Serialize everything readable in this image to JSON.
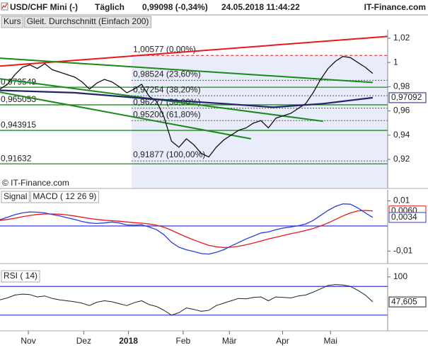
{
  "header": {
    "symbol": "USD/CHF Mini (-)",
    "interval": "Täglich",
    "quote": "0,99098 (-0,34%)",
    "timestamp": "24.05.2018 11:44:22",
    "brand": "IT-Finance.com"
  },
  "chart_data": [
    {
      "type": "line",
      "source": "© IT-Finance.com",
      "xlim": [
        0,
        156
      ],
      "ylim": [
        0.896,
        1.027
      ],
      "yticks": [
        {
          "value": 0.92,
          "label": "0,92"
        },
        {
          "value": 0.94,
          "label": "0,94"
        },
        {
          "value": 0.96,
          "label": "0,96"
        },
        {
          "value": 0.98,
          "label": "0,98"
        },
        1,
        {
          "value": 1.02,
          "label": "1,02"
        }
      ],
      "fib_start_x": 53,
      "fib_color": "#555555",
      "fibs": [
        {
          "value": 1.00577,
          "label": "1,00577 (0,00%)",
          "color": "#e8171b"
        },
        {
          "value": 0.98524,
          "label": "0,98524 (23,60%)"
        },
        {
          "value": 0.97254,
          "label": "0,97254 (38,20%)"
        },
        {
          "value": 0.96227,
          "label": "0,96227 (50,00%)"
        },
        {
          "value": 0.952,
          "label": "0,95200 (61,80%)"
        },
        {
          "value": 0.91877,
          "label": "0,91877 (100,00%)"
        }
      ],
      "level_color": "#1a8a1a",
      "levels": [
        {
          "value": 0.979549,
          "label": "0,979549"
        },
        {
          "value": 0.965053,
          "label": "0,965053"
        },
        {
          "value": 0.943915,
          "label": "0,943915"
        },
        {
          "value": 0.91632,
          "label": "0,91632"
        }
      ],
      "trendlines": [
        {
          "color": "#e8171b",
          "x": [
            0,
            156
          ],
          "values": [
            0.997,
            1.0215
          ]
        },
        {
          "color": "#1a8a1a",
          "x": [
            0,
            150
          ],
          "values": [
            1.0035,
            0.9835
          ]
        },
        {
          "color": "#1a8a1a",
          "x": [
            0,
            130
          ],
          "values": [
            0.9865,
            0.9515
          ]
        },
        {
          "color": "#1a8a1a",
          "x": [
            0,
            101
          ],
          "values": [
            0.9755,
            0.937
          ]
        }
      ],
      "series": [
        {
          "name": "Kurs",
          "color": "#111111",
          "line_width": 1.3,
          "x": [
            0,
            3,
            6,
            9,
            12,
            15,
            18,
            21,
            24,
            27,
            30,
            33,
            36,
            39,
            42,
            45,
            48,
            51,
            54,
            57,
            60,
            63,
            66,
            69,
            72,
            75,
            78,
            81,
            84,
            87,
            90,
            93,
            96,
            99,
            102,
            105,
            108,
            111,
            114,
            117,
            120,
            123,
            126,
            129,
            132,
            135,
            138,
            141,
            144,
            147,
            150
          ],
          "values": [
            0.978,
            0.982,
            0.99,
            0.996,
            0.998,
            0.995,
            0.999,
            0.994,
            0.992,
            0.99,
            0.988,
            0.984,
            0.978,
            0.983,
            0.986,
            0.984,
            0.98,
            0.975,
            0.978,
            0.982,
            0.972,
            0.968,
            0.955,
            0.935,
            0.93,
            0.937,
            0.932,
            0.925,
            0.922,
            0.93,
            0.936,
            0.94,
            0.944,
            0.946,
            0.95,
            0.952,
            0.946,
            0.954,
            0.956,
            0.958,
            0.962,
            0.966,
            0.975,
            0.986,
            0.995,
            1.001,
            1.005,
            1.004,
            1.0,
            0.996,
            0.99098
          ]
        },
        {
          "name": "Gleit. Durchschnitt (Einfach 200)",
          "color": "#23236e",
          "line_width": 2.2,
          "x": [
            0,
            30,
            60,
            90,
            110,
            130,
            150
          ],
          "values": [
            0.977,
            0.975,
            0.97,
            0.966,
            0.963,
            0.966,
            0.97092
          ],
          "last": {
            "value": 0.97092,
            "label": "0,97092"
          }
        }
      ]
    },
    {
      "type": "line",
      "xlim": [
        0,
        156
      ],
      "ylim": [
        -0.015,
        0.0144
      ],
      "yticks": [
        {
          "value": 0.01,
          "label": "0,01"
        },
        {
          "value": -0.01,
          "label": "-0,01"
        }
      ],
      "levels": [
        0
      ],
      "level_color": "#4a4adf",
      "series": [
        {
          "name": "Signal",
          "color": "#e8171b",
          "line_width": 1.3,
          "x": [
            0,
            3,
            6,
            9,
            12,
            15,
            18,
            21,
            24,
            27,
            30,
            33,
            36,
            39,
            42,
            45,
            48,
            51,
            54,
            57,
            60,
            63,
            66,
            69,
            72,
            75,
            78,
            81,
            84,
            87,
            90,
            93,
            96,
            99,
            102,
            105,
            108,
            111,
            114,
            117,
            120,
            123,
            126,
            129,
            132,
            135,
            138,
            141,
            144,
            147,
            150
          ],
          "values": [
            0.0022,
            0.0026,
            0.0031,
            0.0037,
            0.0042,
            0.0046,
            0.0048,
            0.0048,
            0.0047,
            0.0044,
            0.004,
            0.0035,
            0.003,
            0.0026,
            0.0023,
            0.0021,
            0.0019,
            0.0016,
            0.0013,
            0.0011,
            0.0008,
            0.0003,
            -0.0005,
            -0.0017,
            -0.0031,
            -0.0044,
            -0.0056,
            -0.0067,
            -0.0077,
            -0.0083,
            -0.0086,
            -0.0085,
            -0.0081,
            -0.0075,
            -0.0068,
            -0.006,
            -0.0052,
            -0.0045,
            -0.0038,
            -0.0031,
            -0.0025,
            -0.0018,
            -0.001,
            0.0,
            0.0012,
            0.0026,
            0.004,
            0.0052,
            0.006,
            0.0062,
            0.006
          ],
          "last": {
            "value": 0.006,
            "label": "0,0060"
          }
        },
        {
          "name": "MACD ( 12 26 9)",
          "color": "#2a3dd8",
          "line_width": 1.3,
          "x": [
            0,
            3,
            6,
            9,
            12,
            15,
            18,
            21,
            24,
            27,
            30,
            33,
            36,
            39,
            42,
            45,
            48,
            51,
            54,
            57,
            60,
            63,
            66,
            69,
            72,
            75,
            78,
            81,
            84,
            87,
            90,
            93,
            96,
            99,
            102,
            105,
            108,
            111,
            114,
            117,
            120,
            123,
            126,
            129,
            132,
            135,
            138,
            141,
            144,
            147,
            150
          ],
          "values": [
            0.0025,
            0.0035,
            0.0045,
            0.0052,
            0.0056,
            0.0055,
            0.0052,
            0.0046,
            0.004,
            0.0033,
            0.0026,
            0.0018,
            0.0012,
            0.001,
            0.0012,
            0.0016,
            0.0012,
            0.0004,
            0.0003,
            0.0005,
            -0.0004,
            -0.0015,
            -0.0035,
            -0.0065,
            -0.0085,
            -0.0095,
            -0.0102,
            -0.011,
            -0.0112,
            -0.0105,
            -0.0095,
            -0.008,
            -0.0066,
            -0.0052,
            -0.004,
            -0.0028,
            -0.0024,
            -0.0015,
            -0.0008,
            -0.0004,
            0.0001,
            0.0008,
            0.0022,
            0.0042,
            0.0062,
            0.0078,
            0.0088,
            0.0087,
            0.0072,
            0.0052,
            0.0034
          ],
          "last": {
            "value": 0.0034,
            "label": "0,0034"
          }
        }
      ]
    },
    {
      "type": "line",
      "xlim": [
        0,
        156
      ],
      "ylim": [
        -13,
        119
      ],
      "yticks": [
        100
      ],
      "levels": [
        80,
        20
      ],
      "level_color": "#4a4adf",
      "xticks": [
        {
          "value": 11.4,
          "label": "Nov"
        },
        {
          "value": 33.7,
          "label": "Dez"
        },
        {
          "value": 51.7,
          "label": "2018"
        },
        {
          "value": 73.7,
          "label": "Feb"
        },
        {
          "value": 92.3,
          "label": "Mär"
        },
        {
          "value": 113.7,
          "label": "Apr"
        },
        {
          "value": 133,
          "label": "Mai"
        }
      ],
      "series": [
        {
          "name": "RSI ( 14)",
          "color": "#222222",
          "line_width": 1,
          "x": [
            0,
            3,
            6,
            9,
            12,
            15,
            18,
            21,
            24,
            27,
            30,
            33,
            36,
            39,
            42,
            45,
            48,
            51,
            54,
            57,
            60,
            63,
            66,
            69,
            72,
            75,
            78,
            81,
            84,
            87,
            90,
            93,
            96,
            99,
            102,
            105,
            108,
            111,
            114,
            117,
            120,
            123,
            126,
            129,
            132,
            135,
            138,
            141,
            144,
            147,
            150
          ],
          "values": [
            52,
            56,
            62,
            64,
            63,
            58,
            60,
            55,
            52,
            50,
            48,
            45,
            40,
            47,
            50,
            48,
            44,
            40,
            46,
            50,
            42,
            38,
            30,
            20,
            25,
            35,
            32,
            28,
            30,
            40,
            45,
            50,
            55,
            54,
            57,
            58,
            50,
            58,
            57,
            56,
            60,
            62,
            68,
            75,
            82,
            84,
            83,
            80,
            72,
            62,
            47.605
          ],
          "last": {
            "value": 47.605,
            "label": "47,605"
          }
        }
      ]
    }
  ]
}
